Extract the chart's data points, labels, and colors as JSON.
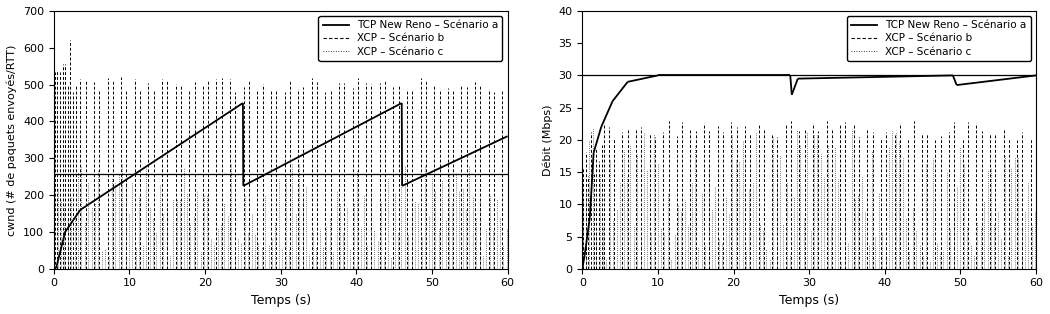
{
  "left": {
    "xlim": [
      0,
      60
    ],
    "ylim": [
      0,
      700
    ],
    "xticks": [
      0,
      10,
      20,
      30,
      40,
      50,
      60
    ],
    "yticks": [
      0,
      100,
      200,
      300,
      400,
      500,
      600,
      700
    ],
    "xlabel": "Temps (s)",
    "ylabel": "cwnd (# de paquets envoyés/RTT)",
    "hline_y": 256,
    "legend_labels": [
      "TCP New Reno – Scénario a",
      "XCP – Scénario b",
      "XCP – Scénario c"
    ]
  },
  "right": {
    "xlim": [
      0,
      60
    ],
    "ylim": [
      0,
      40
    ],
    "xticks": [
      0,
      10,
      20,
      30,
      40,
      50,
      60
    ],
    "yticks": [
      0,
      5,
      10,
      15,
      20,
      25,
      30,
      35,
      40
    ],
    "xlabel": "Temps (s)",
    "ylabel": "Débit (Mbps)",
    "hline_y": 30,
    "legend_labels": [
      "TCP New Reno – Scénario a",
      "XCP – Scénario b",
      "XCP – Scénario c"
    ]
  },
  "bg_color": "#ffffff"
}
